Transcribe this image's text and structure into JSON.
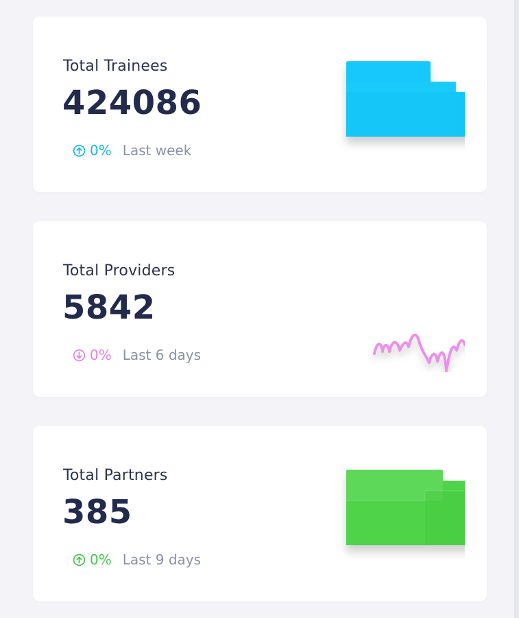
{
  "cards": [
    {
      "title": "Total Trainees",
      "value": "424086",
      "change": "0%",
      "direction": "up",
      "period": "Last week",
      "color": "#14c6f7",
      "chart_kind": "bar-area"
    },
    {
      "title": "Total Providers",
      "value": "5842",
      "change": "0%",
      "direction": "down",
      "period": "Last 6 days",
      "color": "#e98ae8",
      "chart_kind": "line"
    },
    {
      "title": "Total Partners",
      "value": "385",
      "change": "0%",
      "direction": "up",
      "period": "Last 9 days",
      "color": "#4fd34a",
      "chart_kind": "bar-area"
    }
  ]
}
